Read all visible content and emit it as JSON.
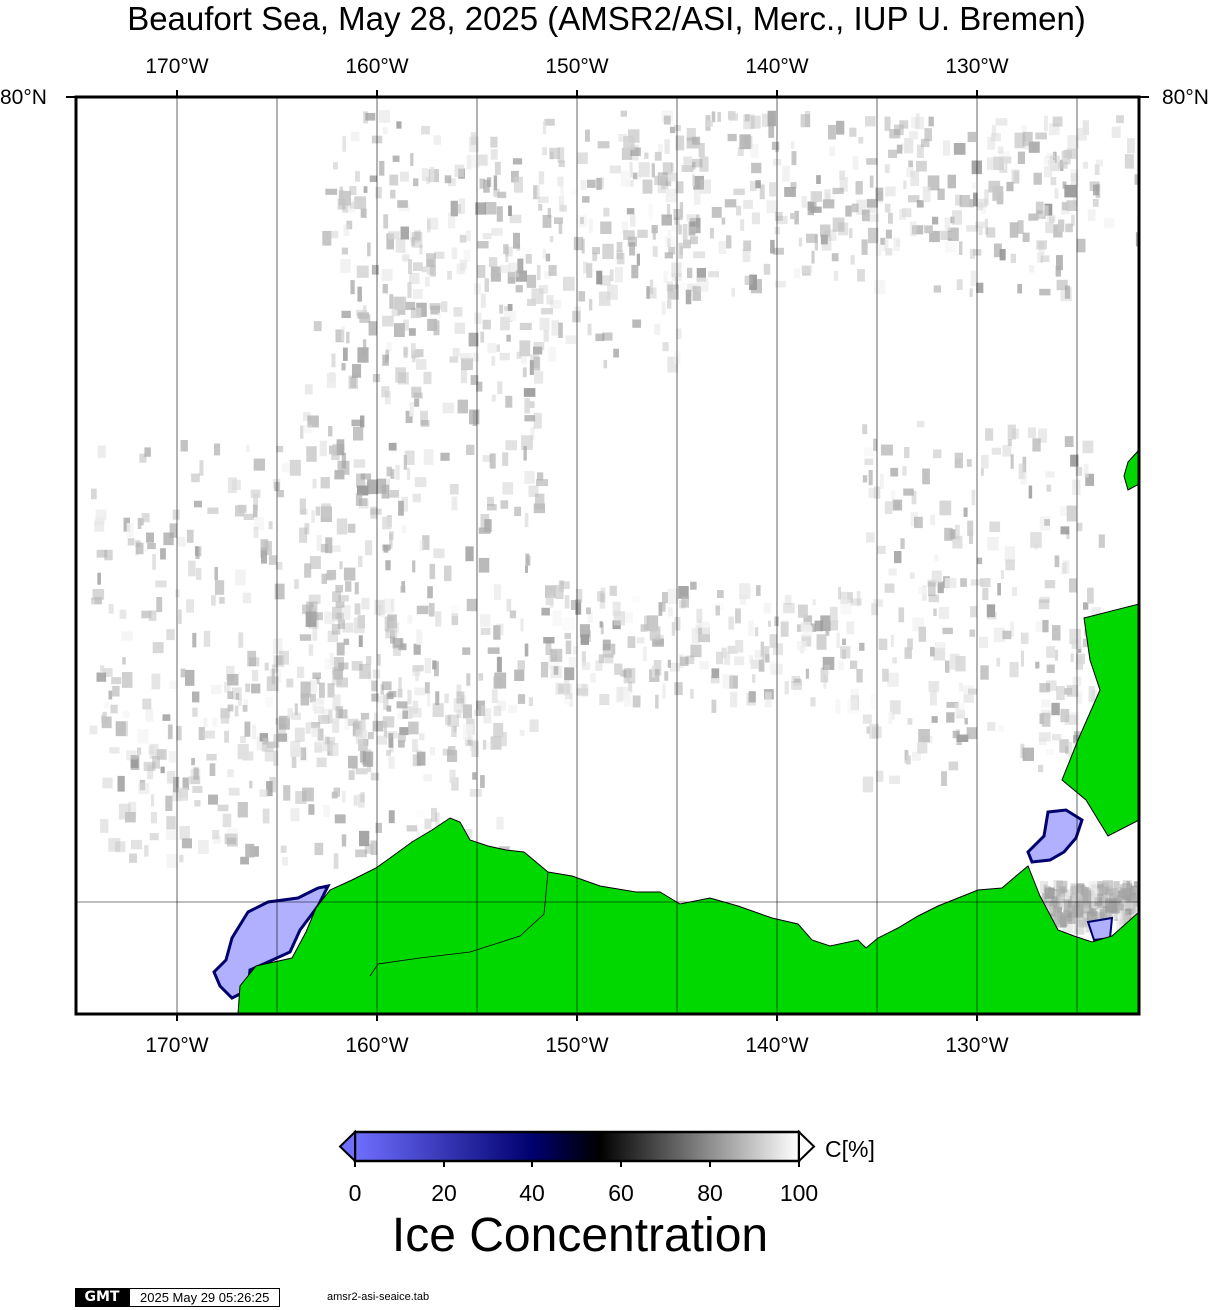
{
  "title": "Beaufort Sea, May 28, 2025 (AMSR2/ASI, Merc., IUP U. Bremen)",
  "map": {
    "projection": "Mercator",
    "lon_labels": [
      "170°W",
      "160°W",
      "150°W",
      "140°W",
      "130°W"
    ],
    "lat_label": "80°N",
    "land_color": "#00d800",
    "low_ice_color": "#b0b0ff",
    "gridlines": true
  },
  "colorbar": {
    "ticks": [
      "0",
      "20",
      "40",
      "60",
      "80",
      "100"
    ],
    "unit": "C[%]",
    "label": "Ice Concentration",
    "stops": [
      "#6f6fff",
      "#00006e",
      "#000000",
      "#ffffff"
    ]
  },
  "footer": {
    "logo": "GMT",
    "timestamp": "2025 May 29 05:26:25",
    "source": "amsr2-asi-seaice.tab"
  }
}
